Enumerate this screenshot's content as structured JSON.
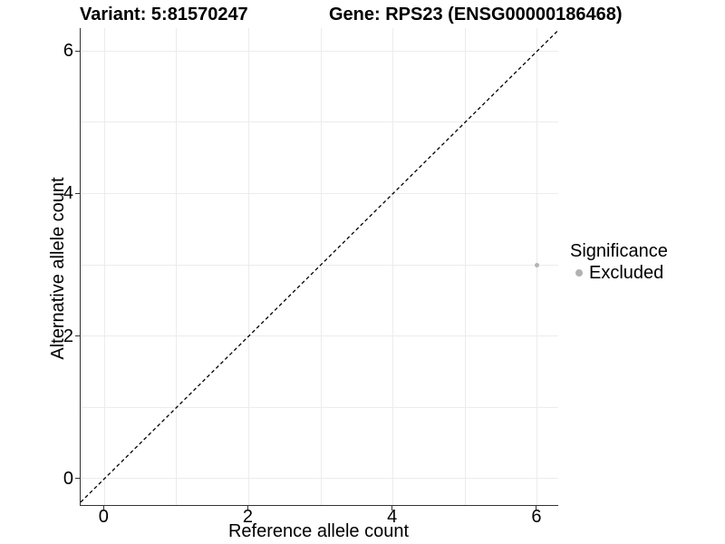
{
  "header": {
    "variant_title": "Variant: 5:81570247",
    "gene_title": "Gene: RPS23 (ENSG00000186468)"
  },
  "legend": {
    "title": "Significance",
    "items": [
      {
        "label": "Excluded",
        "color": "#b2b2b2"
      }
    ]
  },
  "chart_data": {
    "type": "scatter",
    "title_left": "Variant: 5:81570247",
    "title_right": "Gene: RPS23 (ENSG00000186468)",
    "xlabel": "Reference allele count",
    "ylabel": "Alternative allele count",
    "x_ticks": [
      0,
      2,
      4,
      6
    ],
    "y_ticks": [
      0,
      2,
      4,
      6
    ],
    "gridlines_x": [
      0,
      1,
      2,
      3,
      4,
      5,
      6
    ],
    "gridlines_y": [
      0,
      1,
      2,
      3,
      4,
      5,
      6
    ],
    "xlim": [
      -0.33,
      6.29
    ],
    "ylim": [
      -0.37,
      6.32
    ],
    "grid": true,
    "legend_position": "right",
    "legend_title": "Significance",
    "series": [
      {
        "name": "Excluded",
        "color": "#b4b4b4",
        "points": [
          {
            "x": 6,
            "y": 3
          }
        ]
      }
    ],
    "reference_line": {
      "type": "identity",
      "style": "dashed",
      "color": "#000000"
    }
  },
  "colors": {
    "grid": "#ececec",
    "axis": "#333333",
    "text": "#000000"
  }
}
